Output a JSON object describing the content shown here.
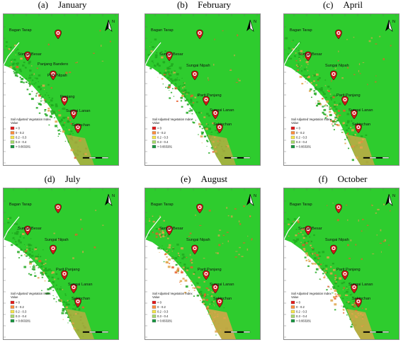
{
  "panels": [
    {
      "letter": "(a)",
      "month": "January"
    },
    {
      "letter": "(b)",
      "month": "February"
    },
    {
      "letter": "(c)",
      "month": "April"
    },
    {
      "letter": "(d)",
      "month": "July"
    },
    {
      "letter": "(e)",
      "month": "August"
    },
    {
      "letter": "(f)",
      "month": "October"
    }
  ],
  "places": [
    "Bagan Tarap",
    "Sungai Besar",
    "Sungai Nipah",
    "Parit Panjang",
    "Sungai Lanan",
    "Sekinchan"
  ],
  "places_panel_a": [
    "Panjang Bandero",
    "Parit Nipah",
    "Panjang",
    "Sungai Lanan",
    "Sekinchan"
  ],
  "legend": {
    "title": "Soil Adjusted Vegetation Index",
    "subtitle": "Value",
    "classes": [
      {
        "label": "< 0",
        "color": "#e31a1c"
      },
      {
        "label": "0 - 0.2",
        "color": "#fd8d3c"
      },
      {
        "label": "0.2 - 0.3",
        "color": "#f7e54a"
      },
      {
        "label": "0.3 - 0.4",
        "color": "#a6d96a"
      },
      {
        "label": "> 0.663281",
        "color": "#1a9641"
      }
    ]
  },
  "north_label": "N",
  "colors": {
    "vegetation": "#2ecc2e",
    "vegetation_dark": "#1ea81e",
    "soil": "#e0a44a",
    "bare": "#e85c2c",
    "sea": "#ffffff",
    "marker": "#d01818"
  }
}
